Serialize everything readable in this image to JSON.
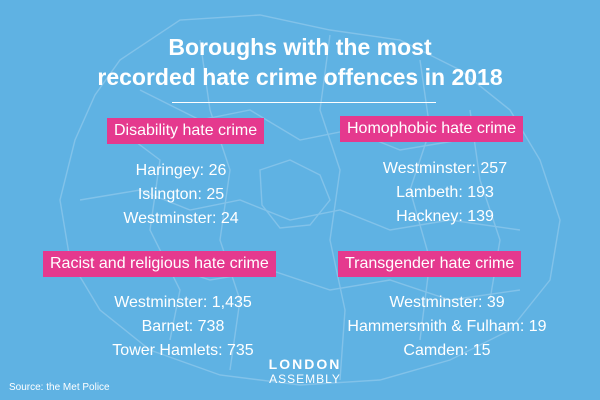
{
  "title": {
    "line1": "Boroughs with the most",
    "line2": "recorded hate crime offences in 2018"
  },
  "panels": [
    {
      "heading": "Disability hate crime",
      "items": [
        "Haringey: 26",
        "Islington: 25",
        "Westminster: 24"
      ]
    },
    {
      "heading": "Homophobic hate crime",
      "items": [
        "Westminster: 257",
        "Lambeth: 193",
        "Hackney: 139"
      ]
    },
    {
      "heading": "Racist and religious hate crime",
      "items": [
        "Westminster: 1,435",
        "Barnet: 738",
        "Tower Hamlets: 735"
      ]
    },
    {
      "heading": "Transgender hate crime",
      "items": [
        "Westminster: 39",
        "Hammersmith & Fulham: 19",
        "Camden: 15"
      ]
    }
  ],
  "logo": {
    "line1": "LONDON",
    "line2": "ASSEMBLY"
  },
  "source": "Source: the Met Police",
  "colors": {
    "background": "#5fb2e3",
    "accent": "#e5398e",
    "text": "#ffffff"
  }
}
